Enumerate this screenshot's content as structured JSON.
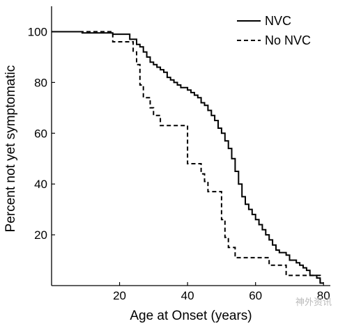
{
  "chart_data": {
    "type": "line",
    "step": true,
    "xlabel": "Age at Onset (years)",
    "ylabel": "Percent not yet symptomatic",
    "xlim": [
      0,
      82
    ],
    "ylim": [
      0,
      110
    ],
    "xticks": [
      20,
      40,
      60,
      80
    ],
    "yticks": [
      20,
      40,
      60,
      80,
      100
    ],
    "grid": false,
    "legend": "top-right",
    "series": [
      {
        "name": "NVC",
        "style": "solid",
        "points": [
          [
            0,
            100
          ],
          [
            9,
            100
          ],
          [
            9,
            99.5
          ],
          [
            18,
            99.5
          ],
          [
            18,
            99
          ],
          [
            23,
            99
          ],
          [
            23,
            97
          ],
          [
            25,
            97
          ],
          [
            25,
            95
          ],
          [
            26,
            95
          ],
          [
            26,
            94
          ],
          [
            27,
            94
          ],
          [
            27,
            92
          ],
          [
            28,
            92
          ],
          [
            28,
            90
          ],
          [
            29,
            90
          ],
          [
            29,
            88
          ],
          [
            30,
            88
          ],
          [
            30,
            87
          ],
          [
            31,
            87
          ],
          [
            31,
            86
          ],
          [
            32,
            86
          ],
          [
            32,
            85
          ],
          [
            33,
            85
          ],
          [
            33,
            84
          ],
          [
            34,
            84
          ],
          [
            34,
            82
          ],
          [
            35,
            82
          ],
          [
            35,
            81
          ],
          [
            36,
            81
          ],
          [
            36,
            80
          ],
          [
            37,
            80
          ],
          [
            37,
            79
          ],
          [
            38,
            79
          ],
          [
            38,
            78
          ],
          [
            40,
            78
          ],
          [
            40,
            77
          ],
          [
            41,
            77
          ],
          [
            41,
            76
          ],
          [
            42,
            76
          ],
          [
            42,
            75
          ],
          [
            43,
            75
          ],
          [
            43,
            74
          ],
          [
            44,
            74
          ],
          [
            44,
            72
          ],
          [
            45,
            72
          ],
          [
            45,
            71
          ],
          [
            46,
            71
          ],
          [
            46,
            69
          ],
          [
            47,
            69
          ],
          [
            47,
            67
          ],
          [
            48,
            67
          ],
          [
            48,
            65
          ],
          [
            49,
            65
          ],
          [
            49,
            62
          ],
          [
            50,
            62
          ],
          [
            50,
            60
          ],
          [
            51,
            60
          ],
          [
            51,
            57
          ],
          [
            52,
            57
          ],
          [
            52,
            54
          ],
          [
            53,
            54
          ],
          [
            53,
            50
          ],
          [
            54,
            50
          ],
          [
            54,
            45
          ],
          [
            55,
            45
          ],
          [
            55,
            40
          ],
          [
            56,
            40
          ],
          [
            56,
            35
          ],
          [
            57,
            35
          ],
          [
            57,
            32
          ],
          [
            58,
            32
          ],
          [
            58,
            30
          ],
          [
            59,
            30
          ],
          [
            59,
            28
          ],
          [
            60,
            28
          ],
          [
            60,
            26
          ],
          [
            61,
            26
          ],
          [
            61,
            24
          ],
          [
            62,
            24
          ],
          [
            62,
            22
          ],
          [
            63,
            22
          ],
          [
            63,
            20
          ],
          [
            64,
            20
          ],
          [
            64,
            18
          ],
          [
            65,
            18
          ],
          [
            65,
            16
          ],
          [
            66,
            16
          ],
          [
            66,
            14
          ],
          [
            67,
            14
          ],
          [
            67,
            13
          ],
          [
            69,
            13
          ],
          [
            69,
            12
          ],
          [
            70,
            12
          ],
          [
            70,
            10
          ],
          [
            72,
            10
          ],
          [
            72,
            9
          ],
          [
            73,
            9
          ],
          [
            73,
            8
          ],
          [
            74,
            8
          ],
          [
            74,
            7
          ],
          [
            75,
            7
          ],
          [
            75,
            6
          ],
          [
            76,
            6
          ],
          [
            76,
            4
          ],
          [
            78,
            4
          ],
          [
            78,
            3
          ],
          [
            79,
            3
          ],
          [
            79,
            1
          ],
          [
            80,
            1
          ]
        ]
      },
      {
        "name": "No NVC",
        "style": "dashed",
        "points": [
          [
            0,
            100
          ],
          [
            18,
            100
          ],
          [
            18,
            96
          ],
          [
            24,
            96
          ],
          [
            24,
            92
          ],
          [
            25,
            92
          ],
          [
            25,
            87
          ],
          [
            26,
            87
          ],
          [
            26,
            79
          ],
          [
            27,
            79
          ],
          [
            27,
            74
          ],
          [
            29,
            74
          ],
          [
            29,
            70
          ],
          [
            30,
            70
          ],
          [
            30,
            67
          ],
          [
            32,
            67
          ],
          [
            32,
            63
          ],
          [
            40,
            63
          ],
          [
            40,
            48
          ],
          [
            44,
            48
          ],
          [
            44,
            44
          ],
          [
            45,
            44
          ],
          [
            45,
            41
          ],
          [
            46,
            41
          ],
          [
            46,
            37
          ],
          [
            50,
            37
          ],
          [
            50,
            26
          ],
          [
            51,
            26
          ],
          [
            51,
            19
          ],
          [
            52,
            19
          ],
          [
            52,
            15
          ],
          [
            54,
            15
          ],
          [
            54,
            11
          ],
          [
            64,
            11
          ],
          [
            64,
            8
          ],
          [
            69,
            8
          ],
          [
            69,
            4
          ],
          [
            79,
            4
          ],
          [
            79,
            1
          ],
          [
            80,
            1
          ]
        ]
      }
    ]
  },
  "watermark": {
    "text": "神外资讯"
  }
}
